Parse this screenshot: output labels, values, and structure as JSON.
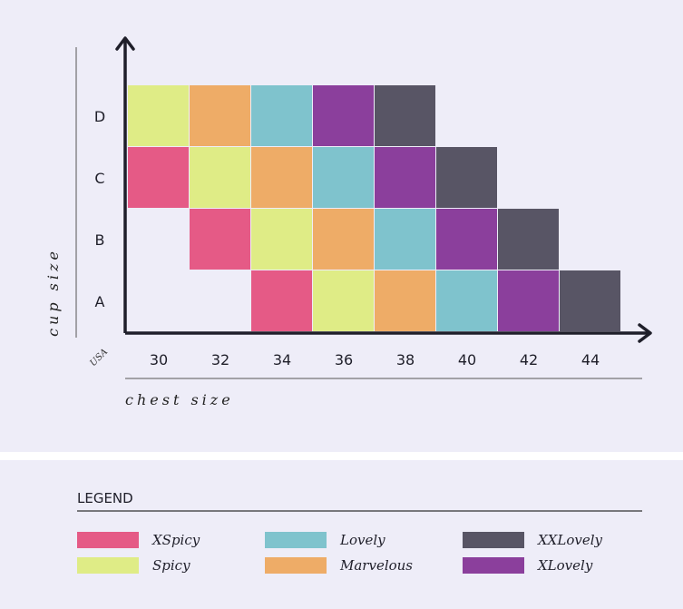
{
  "chart_data": {
    "type": "heatmap",
    "xlabel": "chest size",
    "ylabel": "cup size",
    "x_unit_label": "USA",
    "x_categories": [
      "30",
      "32",
      "34",
      "36",
      "38",
      "40",
      "42",
      "44"
    ],
    "y_categories": [
      "A",
      "B",
      "C",
      "D"
    ],
    "grid": false,
    "legend_position": "bottom",
    "legend_title": "LEGEND",
    "legend": [
      {
        "key": "xspicy",
        "label": "XSpicy",
        "color": "#e55a86"
      },
      {
        "key": "spicy",
        "label": "Spicy",
        "color": "#dfec86"
      },
      {
        "key": "lovely",
        "label": "Lovely",
        "color": "#7fc3cd"
      },
      {
        "key": "marvelous",
        "label": "Marvelous",
        "color": "#eeac67"
      },
      {
        "key": "xxlovely",
        "label": "XXLovely",
        "color": "#585565"
      },
      {
        "key": "xlovely",
        "label": "XLovely",
        "color": "#8b3f9c"
      }
    ],
    "rows": [
      {
        "cup": "A",
        "cells": [
          null,
          null,
          "xspicy",
          "spicy",
          "marvelous",
          "lovely",
          "xlovely",
          "xxlovely"
        ]
      },
      {
        "cup": "B",
        "cells": [
          null,
          "xspicy",
          "spicy",
          "marvelous",
          "lovely",
          "xlovely",
          "xxlovely",
          null
        ]
      },
      {
        "cup": "C",
        "cells": [
          "xspicy",
          "spicy",
          "marvelous",
          "lovely",
          "xlovely",
          "xxlovely",
          null,
          null
        ]
      },
      {
        "cup": "D",
        "cells": [
          "spicy",
          "marvelous",
          "lovely",
          "xlovely",
          "xxlovely",
          null,
          null,
          null
        ]
      }
    ]
  }
}
